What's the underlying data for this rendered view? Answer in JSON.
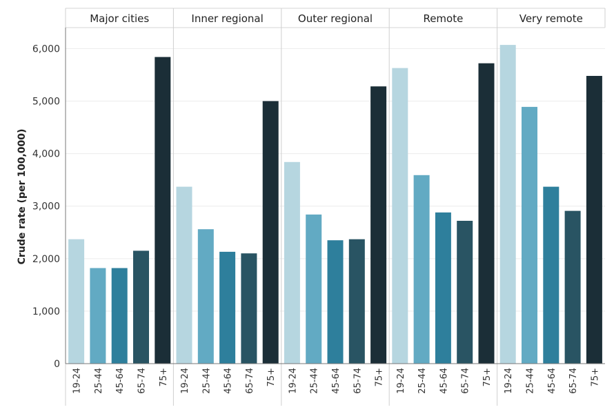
{
  "chart_data": {
    "type": "bar",
    "ylabel": "Crude rate (per 100,000)",
    "ylim": [
      0,
      6400
    ],
    "yticks": [
      0,
      1000,
      2000,
      3000,
      4000,
      5000,
      6000
    ],
    "ytick_labels": [
      "0",
      "1,000",
      "2,000",
      "3,000",
      "4,000",
      "5,000",
      "6,000"
    ],
    "categories": [
      "19-24",
      "25-44",
      "45-64",
      "65-74",
      "75+"
    ],
    "colors": [
      "#b6d6e0",
      "#62aac3",
      "#2e7f9c",
      "#295463",
      "#1b2e37"
    ],
    "grid": true,
    "panels": [
      {
        "name": "Major cities",
        "values": [
          2370,
          1820,
          1820,
          2150,
          5840
        ]
      },
      {
        "name": "Inner regional",
        "values": [
          3370,
          2560,
          2130,
          2100,
          5000
        ]
      },
      {
        "name": "Outer regional",
        "values": [
          3840,
          2840,
          2350,
          2370,
          5280
        ]
      },
      {
        "name": "Remote",
        "values": [
          5630,
          3590,
          2880,
          2720,
          5720
        ]
      },
      {
        "name": "Very remote",
        "values": [
          6070,
          4890,
          3370,
          2910,
          5480
        ]
      }
    ]
  }
}
